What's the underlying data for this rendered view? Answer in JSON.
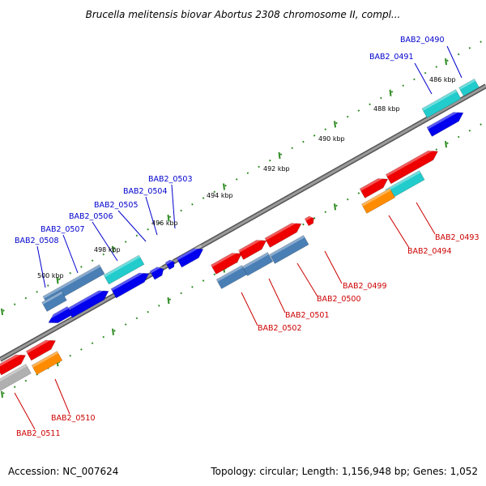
{
  "title": "Brucella melitensis biovar Abortus 2308 chromosome II, compl...",
  "footer": {
    "accession": "Accession: NC_007624",
    "summary": "Topology: circular; Length: 1,156,948 bp; Genes: 1,052"
  },
  "kbp_labels": [
    "486 kbp",
    "488 kbp",
    "490 kbp",
    "492 kbp",
    "494 kbp",
    "496 kbp",
    "498 kbp",
    "500 kbp"
  ],
  "forward_labels": [
    "BAB2_0490",
    "BAB2_0491",
    "BAB2_0503",
    "BAB2_0504",
    "BAB2_0505",
    "BAB2_0506",
    "BAB2_0507",
    "BAB2_0508"
  ],
  "reverse_labels": [
    "BAB2_0493",
    "BAB2_0494",
    "BAB2_0499",
    "BAB2_0500",
    "BAB2_0501",
    "BAB2_0502",
    "BAB2_0510",
    "BAB2_0511"
  ],
  "colors": {
    "backbone": "#808080",
    "tick": "#2e8b22",
    "forward_label": "#0000cc",
    "reverse_label": "#cc0000",
    "gene_red": "#ee0000",
    "gene_steelblue": "#4a7fb5",
    "gene_cyan": "#22cccc",
    "gene_blue": "#0000ee",
    "gene_orange": "#ff8c00",
    "gene_gray": "#b0b0b0"
  }
}
